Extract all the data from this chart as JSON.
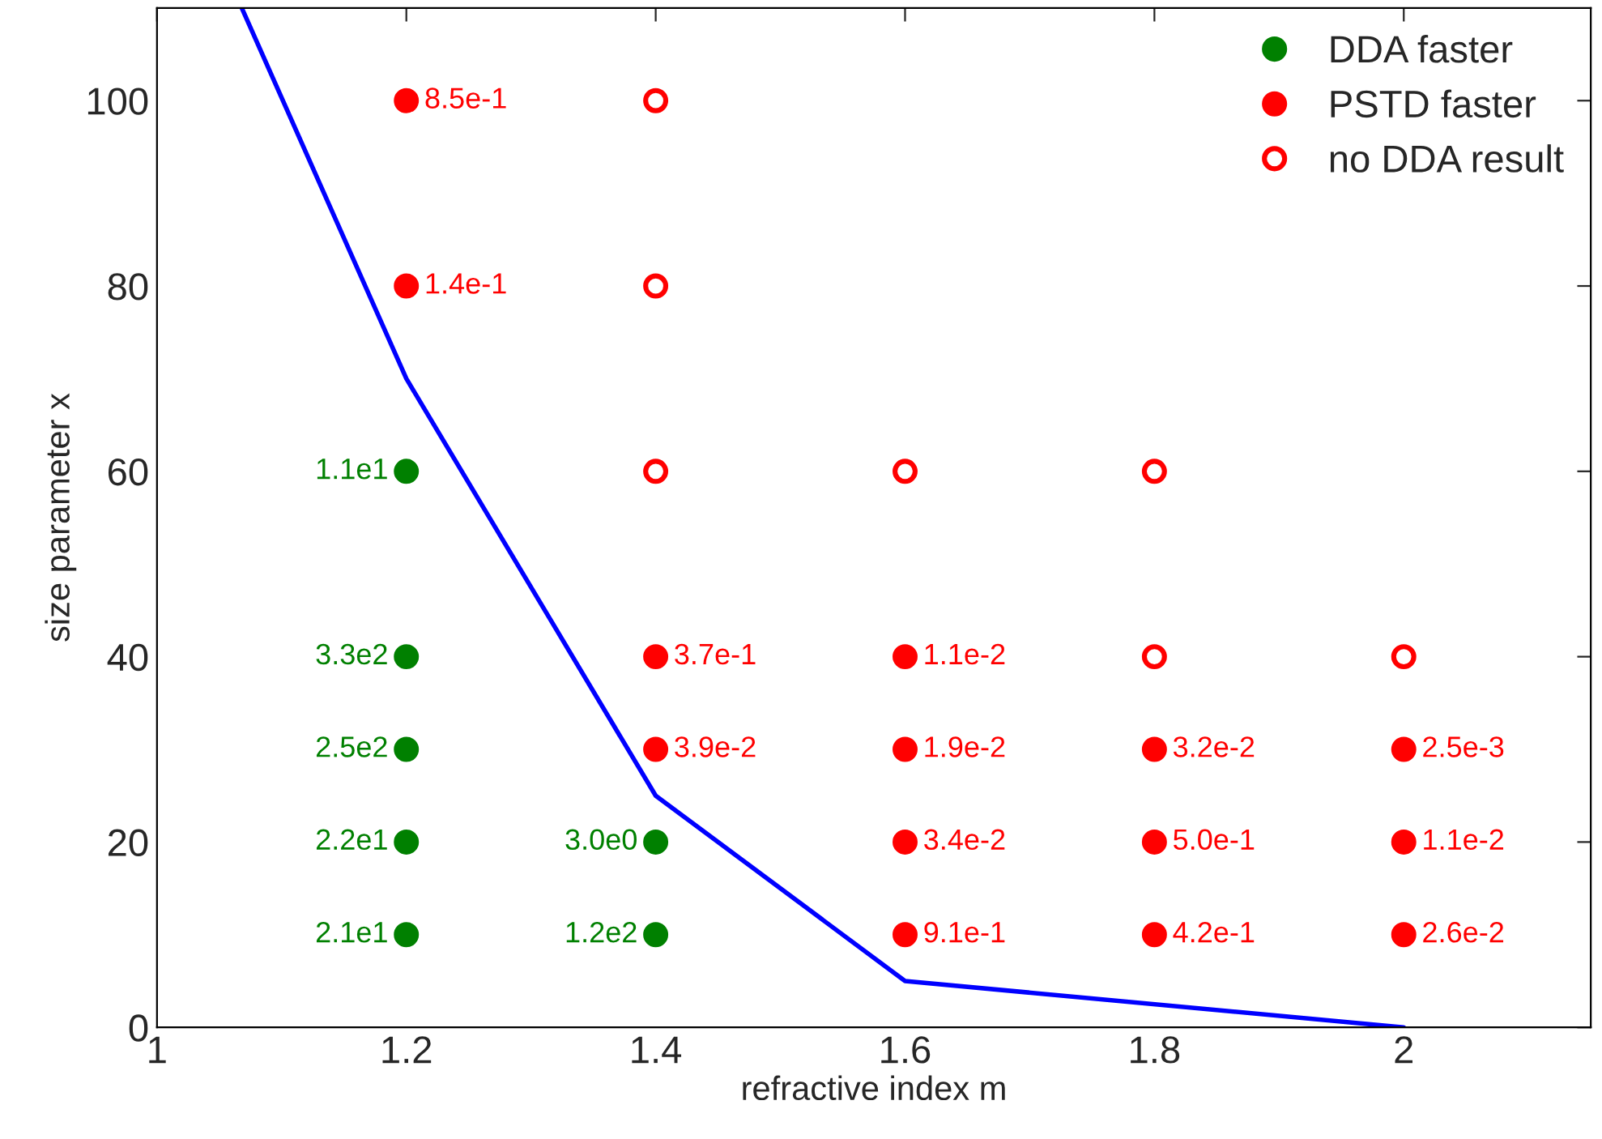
{
  "chart_data": {
    "type": "scatter",
    "xlabel": "refractive index m",
    "ylabel": "size parameter x",
    "xlim": [
      1,
      2.15
    ],
    "ylim": [
      0,
      110
    ],
    "xticks": [
      1,
      1.2,
      1.4,
      1.6,
      1.8,
      2
    ],
    "yticks": [
      0,
      20,
      40,
      60,
      80,
      100
    ],
    "legend": "top right",
    "series": [
      {
        "name": "DDA faster",
        "color": "#008000",
        "marker": "circle",
        "x": [
          1.2,
          1.2,
          1.2,
          1.2,
          1.2,
          1.4,
          1.4
        ],
        "values": [
          60,
          40,
          30,
          20,
          10,
          20,
          10
        ]
      },
      {
        "name": "PSTD faster",
        "color": "#ff0000",
        "marker": "circle",
        "x": [
          1.2,
          1.2,
          1.4,
          1.4,
          1.6,
          1.6,
          1.6,
          1.6,
          1.8,
          1.8,
          1.8,
          2,
          2,
          2
        ],
        "values": [
          100,
          80,
          40,
          30,
          40,
          30,
          20,
          10,
          30,
          20,
          10,
          30,
          20,
          10
        ]
      },
      {
        "name": "no DDA result",
        "color": "#ff0000",
        "marker": "open circle",
        "x": [
          1.4,
          1.4,
          1.4,
          1.6,
          1.8,
          1.8,
          2
        ],
        "values": [
          100,
          80,
          60,
          60,
          60,
          40,
          40
        ]
      },
      {
        "type": "line",
        "color": "#0000ff",
        "marker": "none",
        "x": [
          1.068,
          1.2,
          1.4,
          1.6,
          2
        ],
        "values": [
          110,
          70,
          25,
          5,
          0
        ]
      }
    ],
    "annotations": [
      {
        "text": "1.1e1",
        "x": 1.2,
        "y": 60
      },
      {
        "text": "3.3e2",
        "x": 1.2,
        "y": 40
      },
      {
        "text": "2.5e2",
        "x": 1.2,
        "y": 30
      },
      {
        "text": "2.2e1",
        "x": 1.2,
        "y": 20
      },
      {
        "text": "2.1e1",
        "x": 1.2,
        "y": 10
      },
      {
        "text": "3.0e0",
        "x": 1.4,
        "y": 20
      },
      {
        "text": "1.2e2",
        "x": 1.4,
        "y": 10
      },
      {
        "text": "8.5e-1",
        "x": 1.2,
        "y": 100
      },
      {
        "text": "1.4e-1",
        "x": 1.2,
        "y": 80
      },
      {
        "text": "3.7e-1",
        "x": 1.4,
        "y": 40
      },
      {
        "text": "3.9e-2",
        "x": 1.4,
        "y": 30
      },
      {
        "text": "1.1e-2",
        "x": 1.6,
        "y": 40
      },
      {
        "text": "1.9e-2",
        "x": 1.6,
        "y": 30
      },
      {
        "text": "3.4e-2",
        "x": 1.6,
        "y": 20
      },
      {
        "text": "9.1e-1",
        "x": 1.6,
        "y": 10
      },
      {
        "text": "3.2e-2",
        "x": 1.8,
        "y": 30
      },
      {
        "text": "5.0e-1",
        "x": 1.8,
        "y": 20
      },
      {
        "text": "4.2e-1",
        "x": 1.8,
        "y": 10
      },
      {
        "text": "2.5e-3",
        "x": 2,
        "y": 30
      },
      {
        "text": "1.1e-2",
        "x": 2,
        "y": 20
      },
      {
        "text": "2.6e-2",
        "x": 2,
        "y": 10
      }
    ]
  }
}
